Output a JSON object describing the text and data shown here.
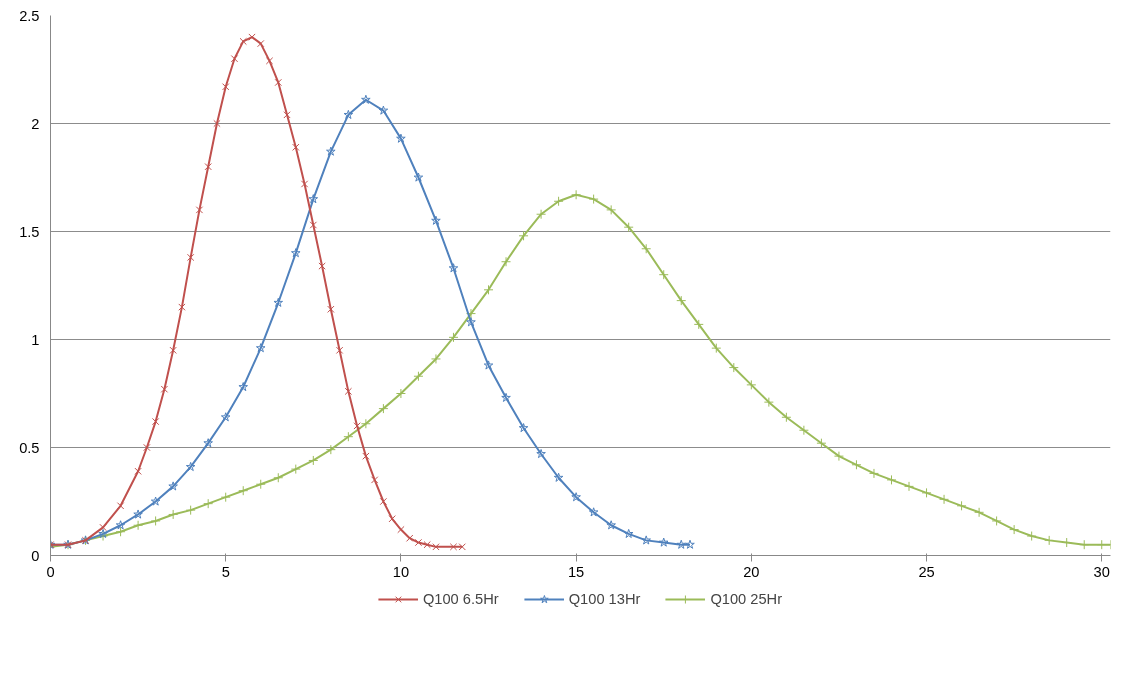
{
  "chart_data": {
    "type": "line",
    "xlim": [
      0,
      30.25
    ],
    "xticks": [
      0,
      5,
      10,
      15,
      20,
      25,
      30
    ],
    "ylim": [
      0,
      2.5
    ],
    "yticks": [
      0,
      0.5,
      1,
      1.5,
      2,
      2.5
    ],
    "grid": "y",
    "legend": "bottom",
    "line_style": "solid",
    "series": [
      {
        "name": "Q100 6.5Hr",
        "color": "#c0504d",
        "marker": "x",
        "x": [
          0,
          0.5,
          1,
          1.5,
          2,
          2.5,
          2.75,
          3,
          3.25,
          3.5,
          3.75,
          4,
          4.25,
          4.5,
          4.75,
          5,
          5.25,
          5.5,
          5.75,
          6,
          6.25,
          6.5,
          6.75,
          7,
          7.25,
          7.5,
          7.75,
          8,
          8.25,
          8.5,
          8.75,
          9,
          9.25,
          9.5,
          9.75,
          10,
          10.25,
          10.5,
          10.75,
          11,
          11.5,
          11.75
        ],
        "values": [
          0.05,
          0.05,
          0.07,
          0.13,
          0.23,
          0.39,
          0.5,
          0.62,
          0.77,
          0.95,
          1.15,
          1.38,
          1.6,
          1.8,
          2.0,
          2.17,
          2.3,
          2.38,
          2.4,
          2.37,
          2.29,
          2.19,
          2.04,
          1.89,
          1.72,
          1.53,
          1.34,
          1.14,
          0.95,
          0.76,
          0.6,
          0.46,
          0.35,
          0.25,
          0.17,
          0.12,
          0.08,
          0.06,
          0.05,
          0.04,
          0.04,
          0.04
        ]
      },
      {
        "name": "Q100 13Hr",
        "color": "#4f81bd",
        "marker": "star",
        "x": [
          0,
          0.5,
          1,
          1.5,
          2,
          2.5,
          3,
          3.5,
          4,
          4.5,
          5,
          5.5,
          6,
          6.5,
          7,
          7.5,
          8,
          8.5,
          9,
          9.5,
          10,
          10.5,
          11,
          11.5,
          12,
          12.5,
          13,
          13.5,
          14,
          14.5,
          15,
          15.5,
          16,
          16.5,
          17,
          17.5,
          18,
          18.25
        ],
        "values": [
          0.05,
          0.05,
          0.07,
          0.1,
          0.14,
          0.19,
          0.25,
          0.32,
          0.41,
          0.52,
          0.64,
          0.78,
          0.96,
          1.17,
          1.4,
          1.65,
          1.87,
          2.04,
          2.11,
          2.06,
          1.93,
          1.75,
          1.55,
          1.33,
          1.08,
          0.88,
          0.73,
          0.59,
          0.47,
          0.36,
          0.27,
          0.2,
          0.14,
          0.1,
          0.07,
          0.06,
          0.05,
          0.05
        ]
      },
      {
        "name": "Q100 25Hr",
        "color": "#9bbb59",
        "marker": "cross",
        "x": [
          0,
          0.5,
          1,
          1.5,
          2,
          2.5,
          3,
          3.5,
          4,
          4.5,
          5,
          5.5,
          6,
          6.5,
          7,
          7.5,
          8,
          8.5,
          9,
          9.5,
          10,
          10.5,
          11,
          11.5,
          12,
          12.5,
          13,
          13.5,
          14,
          14.5,
          15,
          15.5,
          16,
          16.5,
          17,
          17.5,
          18,
          18.5,
          19,
          19.5,
          20,
          20.5,
          21,
          21.5,
          22,
          22.5,
          23,
          23.5,
          24,
          24.5,
          25,
          25.5,
          26,
          26.5,
          27,
          27.5,
          28,
          28.5,
          29,
          29.5,
          30,
          30.25
        ],
        "values": [
          0.04,
          0.05,
          0.07,
          0.09,
          0.11,
          0.14,
          0.16,
          0.19,
          0.21,
          0.24,
          0.27,
          0.3,
          0.33,
          0.36,
          0.4,
          0.44,
          0.49,
          0.55,
          0.61,
          0.68,
          0.75,
          0.83,
          0.91,
          1.01,
          1.12,
          1.23,
          1.36,
          1.48,
          1.58,
          1.64,
          1.67,
          1.65,
          1.6,
          1.52,
          1.42,
          1.3,
          1.18,
          1.07,
          0.96,
          0.87,
          0.79,
          0.71,
          0.64,
          0.58,
          0.52,
          0.46,
          0.42,
          0.38,
          0.35,
          0.32,
          0.29,
          0.26,
          0.23,
          0.2,
          0.16,
          0.12,
          0.09,
          0.07,
          0.06,
          0.05,
          0.05,
          0.05
        ]
      }
    ]
  }
}
